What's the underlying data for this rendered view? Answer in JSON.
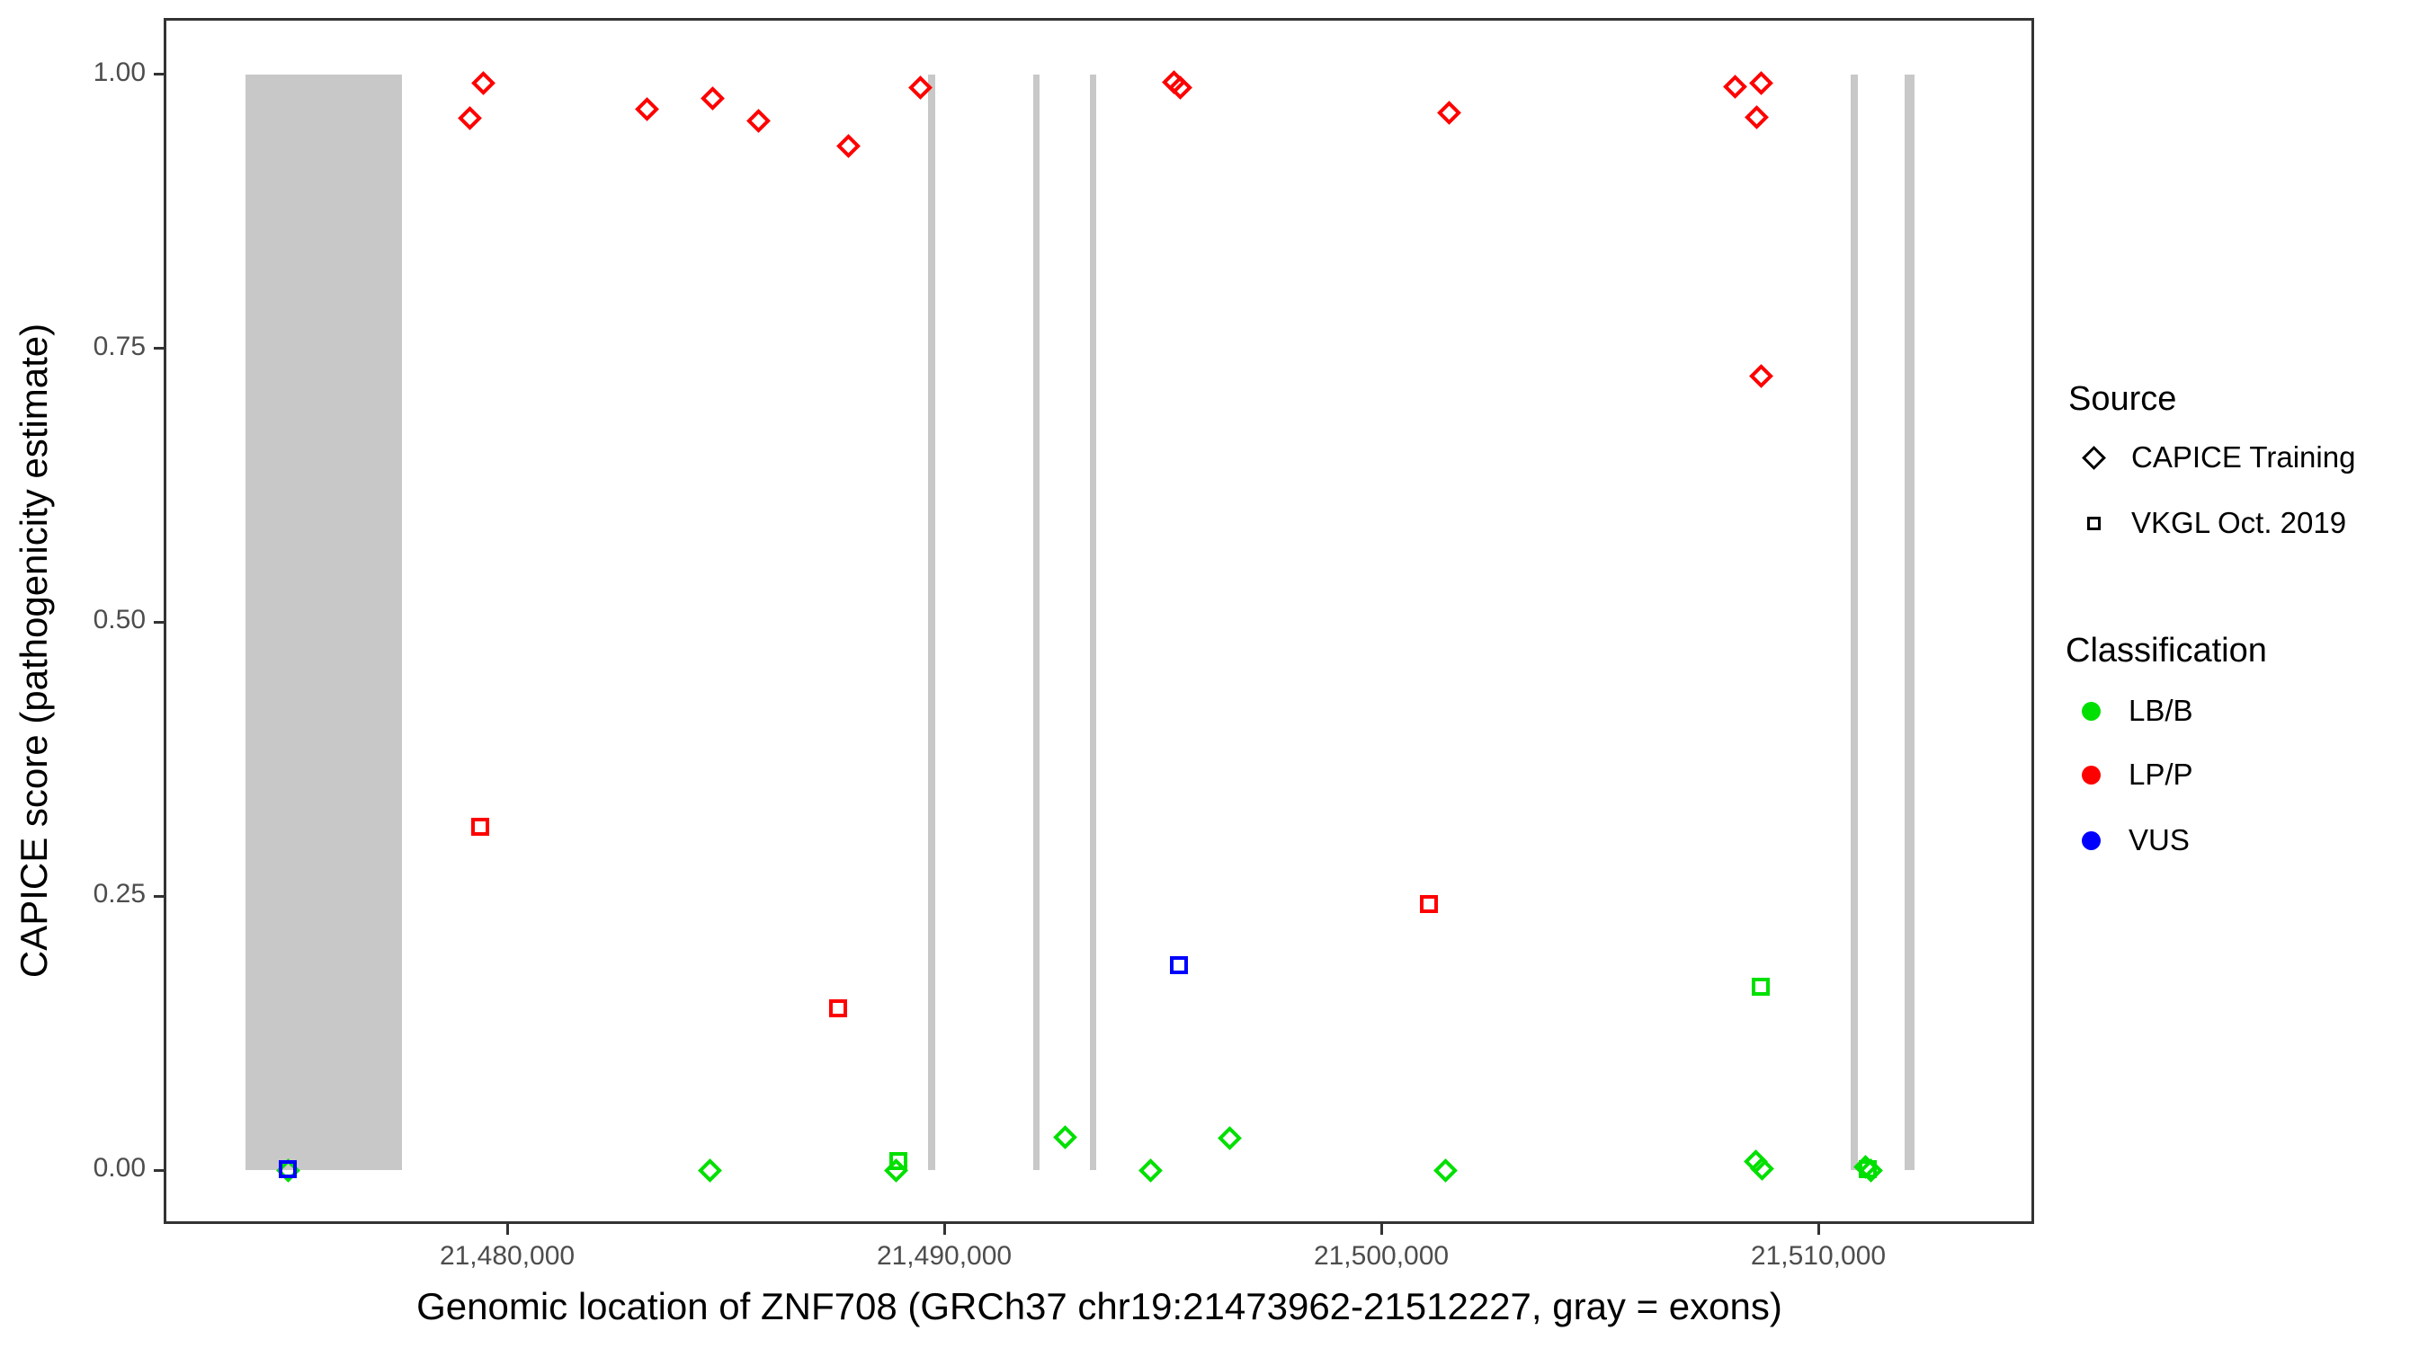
{
  "figure": {
    "x_title": "Genomic location of ZNF708 (GRCh37 chr19:21473962-21512227, gray = exons)",
    "y_title": "CAPICE score (pathogenicity estimate)"
  },
  "colors": {
    "lbb_green": "#00e000",
    "lpp_red": "#ff0000",
    "vus_blue": "#0000ff",
    "exon_gray": "#c8c8c8",
    "axis": "#333333",
    "tick_text": "#4d4d4d"
  },
  "legend": {
    "source": {
      "title": "Source",
      "items": [
        {
          "label": "CAPICE Training",
          "marker": "diamond"
        },
        {
          "label": "VKGL Oct. 2019",
          "marker": "square"
        }
      ]
    },
    "classification": {
      "title": "Classification",
      "items": [
        {
          "label": "LB/B",
          "color": "#00e000"
        },
        {
          "label": "LP/P",
          "color": "#ff0000"
        },
        {
          "label": "VUS",
          "color": "#0000ff"
        }
      ]
    }
  },
  "chart_data": {
    "type": "scatter",
    "title": "",
    "xlabel": "Genomic location of ZNF708 (GRCh37 chr19:21473962-21512227, gray = exons)",
    "ylabel": "CAPICE score (pathogenicity estimate)",
    "legend_position": "right",
    "grid": false,
    "xlim": [
      21472160,
      21514938
    ],
    "ylim": [
      -0.0492,
      1.0508
    ],
    "x_ticks": [
      {
        "value": 21480000,
        "label": "21,480,000"
      },
      {
        "value": 21490000,
        "label": "21,490,000"
      },
      {
        "value": 21500000,
        "label": "21,500,000"
      },
      {
        "value": 21510000,
        "label": "21,510,000"
      }
    ],
    "y_ticks": [
      {
        "value": 0.0,
        "label": "0.00"
      },
      {
        "value": 0.25,
        "label": "0.25"
      },
      {
        "value": 0.5,
        "label": "0.50"
      },
      {
        "value": 0.75,
        "label": "0.75"
      },
      {
        "value": 1.0,
        "label": "1.00"
      }
    ],
    "exons_bp": [
      {
        "start": 21474010,
        "end": 21477590
      },
      {
        "start": 21489630,
        "end": 21489800
      },
      {
        "start": 21492030,
        "end": 21492180
      },
      {
        "start": 21493330,
        "end": 21493460
      },
      {
        "start": 21510740,
        "end": 21510910
      },
      {
        "start": 21511980,
        "end": 21512210
      }
    ],
    "points": [
      {
        "x": 21479150,
        "y": 0.96,
        "source": "CAPICE Training",
        "classification": "LP/P"
      },
      {
        "x": 21479450,
        "y": 0.992,
        "source": "CAPICE Training",
        "classification": "LP/P"
      },
      {
        "x": 21483200,
        "y": 0.968,
        "source": "CAPICE Training",
        "classification": "LP/P"
      },
      {
        "x": 21484700,
        "y": 0.978,
        "source": "CAPICE Training",
        "classification": "LP/P"
      },
      {
        "x": 21485750,
        "y": 0.958,
        "source": "CAPICE Training",
        "classification": "LP/P"
      },
      {
        "x": 21487800,
        "y": 0.935,
        "source": "CAPICE Training",
        "classification": "LP/P"
      },
      {
        "x": 21489450,
        "y": 0.988,
        "source": "CAPICE Training",
        "classification": "LP/P"
      },
      {
        "x": 21495250,
        "y": 0.993,
        "source": "CAPICE Training",
        "classification": "LP/P"
      },
      {
        "x": 21495400,
        "y": 0.988,
        "source": "CAPICE Training",
        "classification": "LP/P"
      },
      {
        "x": 21501550,
        "y": 0.965,
        "source": "CAPICE Training",
        "classification": "LP/P"
      },
      {
        "x": 21508100,
        "y": 0.989,
        "source": "CAPICE Training",
        "classification": "LP/P"
      },
      {
        "x": 21508700,
        "y": 0.992,
        "source": "CAPICE Training",
        "classification": "LP/P"
      },
      {
        "x": 21508600,
        "y": 0.961,
        "source": "CAPICE Training",
        "classification": "LP/P"
      },
      {
        "x": 21508700,
        "y": 0.725,
        "source": "CAPICE Training",
        "classification": "LP/P"
      },
      {
        "x": 21474980,
        "y": 0.0,
        "source": "CAPICE Training",
        "classification": "LB/B"
      },
      {
        "x": 21484630,
        "y": 0.0,
        "source": "CAPICE Training",
        "classification": "LB/B"
      },
      {
        "x": 21488890,
        "y": 0.0,
        "source": "CAPICE Training",
        "classification": "LB/B"
      },
      {
        "x": 21492760,
        "y": 0.03,
        "source": "CAPICE Training",
        "classification": "LB/B"
      },
      {
        "x": 21494730,
        "y": 0.0,
        "source": "CAPICE Training",
        "classification": "LB/B"
      },
      {
        "x": 21496540,
        "y": 0.029,
        "source": "CAPICE Training",
        "classification": "LB/B"
      },
      {
        "x": 21501480,
        "y": 0.0,
        "source": "CAPICE Training",
        "classification": "LB/B"
      },
      {
        "x": 21508560,
        "y": 0.008,
        "source": "CAPICE Training",
        "classification": "LB/B"
      },
      {
        "x": 21508720,
        "y": 0.001,
        "source": "CAPICE Training",
        "classification": "LB/B"
      },
      {
        "x": 21511070,
        "y": 0.003,
        "source": "CAPICE Training",
        "classification": "LB/B"
      },
      {
        "x": 21511210,
        "y": 0.0,
        "source": "CAPICE Training",
        "classification": "LB/B"
      },
      {
        "x": 21479380,
        "y": 0.313,
        "source": "VKGL Oct. 2019",
        "classification": "LP/P"
      },
      {
        "x": 21487570,
        "y": 0.148,
        "source": "VKGL Oct. 2019",
        "classification": "LP/P"
      },
      {
        "x": 21501100,
        "y": 0.243,
        "source": "VKGL Oct. 2019",
        "classification": "LP/P"
      },
      {
        "x": 21488950,
        "y": 0.008,
        "source": "VKGL Oct. 2019",
        "classification": "LB/B"
      },
      {
        "x": 21508680,
        "y": 0.167,
        "source": "VKGL Oct. 2019",
        "classification": "LB/B"
      },
      {
        "x": 21511130,
        "y": 0.001,
        "source": "VKGL Oct. 2019",
        "classification": "LB/B"
      },
      {
        "x": 21474980,
        "y": 0.001,
        "source": "VKGL Oct. 2019",
        "classification": "VUS"
      },
      {
        "x": 21495370,
        "y": 0.187,
        "source": "VKGL Oct. 2019",
        "classification": "VUS"
      }
    ]
  }
}
